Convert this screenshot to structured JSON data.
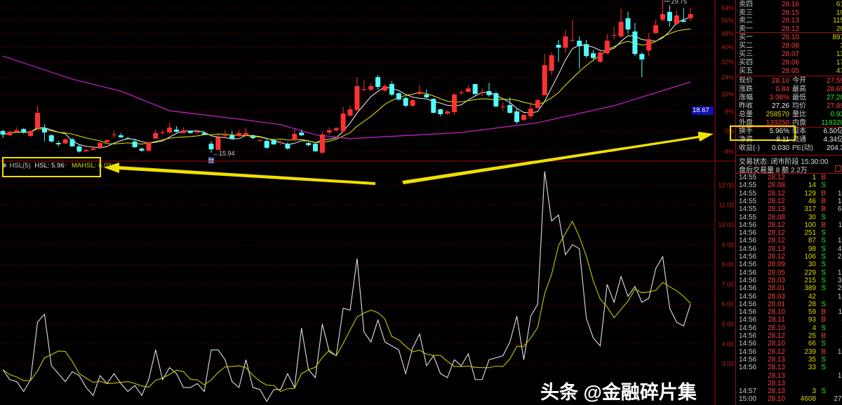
{
  "colors": {
    "up": "#ff3232",
    "down": "#54fcfc",
    "ma_short": "#e0e0e0",
    "ma_mid": "#d8d800",
    "ma_long": "#c020c0",
    "hsl": "#e0e0e0",
    "mahsl": "#c8c800",
    "grid": "#5a0000",
    "axis_text": "#c02020",
    "annotation": "#f0e000"
  },
  "chart_data": [
    {
      "type": "candlestick",
      "yscale": "log-percent",
      "y_ticks": [
        "64%",
        "56%",
        "48%",
        "40%",
        "32%",
        "24%",
        "16%",
        "8%",
        "0%",
        "-8%"
      ],
      "y_tick_values": [
        64,
        56,
        48,
        40,
        32,
        24,
        16,
        8,
        0,
        -8
      ],
      "high_label": "29.75",
      "low_label": "15.94",
      "low_marker": "财",
      "cursor_price": "18.67",
      "ohlc": [
        [
          0,
          0.6,
          -2.8,
          -1.4
        ],
        [
          -1.7,
          0.3,
          -2.0,
          -0.3
        ],
        [
          -0.3,
          1.5,
          -0.8,
          0.3
        ],
        [
          0.8,
          1.2,
          -1.0,
          -0.6
        ],
        [
          -2.0,
          0.5,
          -2.3,
          0
        ],
        [
          1.1,
          10.5,
          1.1,
          7.6
        ],
        [
          1.1,
          2.9,
          -4.0,
          -0.6
        ],
        [
          -1.7,
          -1.2,
          -4.5,
          -4.1
        ],
        [
          -4.7,
          -3.8,
          -6.0,
          -5.2
        ],
        [
          -4.9,
          -2.8,
          -5.0,
          -3.3
        ],
        [
          -3.3,
          -2.6,
          -6.0,
          -6.0
        ],
        [
          -6.0,
          -5.5,
          -8.3,
          -7.9
        ],
        [
          -7.8,
          -7.0,
          -8.0,
          -7.3
        ],
        [
          -7.3,
          -6.5,
          -7.5,
          -6.8
        ],
        [
          -6.5,
          -4.2,
          -6.8,
          -4.7
        ],
        [
          -4.4,
          -3.3,
          -4.6,
          -3.6
        ],
        [
          -1.5,
          0.0,
          -2.8,
          -1.3
        ],
        [
          -1.7,
          -0.8,
          -2.7,
          -2.5
        ],
        [
          -2.8,
          -2.3,
          -3.3,
          -3.0
        ],
        [
          -4.1,
          -3.0,
          -6.5,
          -6.3
        ],
        [
          -6.8,
          -6.5,
          -8.0,
          -7.6
        ],
        [
          -7.6,
          -4.0,
          -7.8,
          -4.4
        ],
        [
          -3.0,
          0.5,
          -3.0,
          -0.8
        ],
        [
          -0.6,
          0.5,
          -1.4,
          -0.6
        ],
        [
          -0.6,
          3.3,
          -0.8,
          1.4
        ],
        [
          0.6,
          2.0,
          -0.6,
          -0.3
        ],
        [
          -0.8,
          1.5,
          -1.0,
          0.3
        ],
        [
          0,
          0.3,
          -1.0,
          -0.8
        ],
        [
          -0.6,
          0.6,
          -1.0,
          -0.3
        ],
        [
          -0.8,
          0,
          -1.7,
          -1.4
        ],
        [
          -5.0,
          -4.0,
          -8.4,
          -7.1
        ],
        [
          -7.3,
          -1.4,
          -7.3,
          -2.5
        ],
        [
          -1.7,
          0.3,
          -3.0,
          -1.7
        ],
        [
          -1.7,
          0,
          -3.3,
          -3.0
        ],
        [
          -2.0,
          0.3,
          -2.3,
          -0.8
        ],
        [
          -1.7,
          1.5,
          -2.0,
          -0.8
        ],
        [
          -2.2,
          -1.4,
          -3.3,
          -2.8
        ],
        [
          -3.9,
          -3.3,
          -4.2,
          -3.6
        ],
        [
          -3.9,
          -2.8,
          -7.0,
          -6.5
        ],
        [
          -3.6,
          -3.0,
          -5.5,
          -5.2
        ],
        [
          -4.4,
          -3.6,
          -5.5,
          -4.4
        ],
        [
          -5.0,
          -4.4,
          -7.3,
          -6.8
        ],
        [
          -3.6,
          1.0,
          -4.0,
          -1.1
        ],
        [
          -0.6,
          0.6,
          -2.0,
          -1.7
        ],
        [
          -4.7,
          -4.2,
          -6.0,
          -5.5
        ],
        [
          -5.0,
          -4.5,
          -8.0,
          -7.8
        ],
        [
          -8.4,
          -0.3,
          -8.4,
          -1.4
        ],
        [
          -0.6,
          1.5,
          -1.4,
          0.3
        ],
        [
          0.3,
          1.7,
          -0.3,
          1.1
        ],
        [
          0,
          10.1,
          -0.3,
          7.3
        ],
        [
          6.4,
          11.0,
          5.8,
          9.1
        ],
        [
          8.8,
          24.2,
          8.5,
          19.8
        ],
        [
          18.4,
          22.5,
          17.1,
          18.4
        ],
        [
          18.1,
          21.3,
          17.5,
          19.8
        ],
        [
          24.2,
          25.3,
          18.1,
          19.4
        ],
        [
          17.7,
          20.8,
          17.1,
          19.8
        ],
        [
          20.8,
          22.2,
          15.0,
          15.8
        ],
        [
          16.4,
          16.8,
          13.0,
          13.5
        ],
        [
          14.2,
          14.8,
          10.1,
          10.7
        ],
        [
          10.7,
          13.9,
          10.1,
          13.2
        ],
        [
          16.1,
          20.4,
          15.5,
          17.1
        ],
        [
          15.8,
          18.1,
          14.2,
          14.5
        ],
        [
          13.8,
          14.2,
          7.3,
          7.6
        ],
        [
          9.1,
          9.4,
          6.1,
          7.0
        ],
        [
          7.3,
          8.8,
          6.7,
          8.2
        ],
        [
          7.9,
          16.4,
          6.7,
          15.8
        ],
        [
          16.8,
          18.1,
          15.5,
          16.8
        ],
        [
          17.1,
          20.1,
          16.8,
          18.7
        ],
        [
          20.8,
          20.8,
          15.5,
          16.1
        ],
        [
          16.8,
          18.7,
          15.1,
          16.8
        ],
        [
          17.4,
          21.3,
          14.8,
          15.5
        ],
        [
          16.4,
          17.1,
          10.1,
          10.4
        ],
        [
          10.1,
          12.2,
          8.5,
          10.4
        ],
        [
          11.0,
          14.5,
          7.3,
          7.6
        ],
        [
          8.2,
          9.4,
          2.9,
          3.7
        ],
        [
          4.6,
          7.3,
          4.0,
          6.7
        ],
        [
          6.1,
          12.2,
          4.9,
          9.4
        ],
        [
          9.7,
          13.9,
          9.4,
          13.2
        ],
        [
          15.5,
          36.3,
          15.5,
          30.3
        ],
        [
          27.4,
          37.1,
          25.3,
          35.6
        ],
        [
          41.4,
          44.2,
          32.1,
          39.8
        ],
        [
          39.8,
          50.0,
          37.1,
          46.3
        ],
        [
          44.2,
          56.0,
          43.0,
          44.2
        ],
        [
          43.8,
          46.3,
          28.5,
          40.6
        ],
        [
          41.8,
          44.2,
          34.1,
          35.2
        ],
        [
          36.7,
          38.6,
          33.3,
          34.1
        ],
        [
          32.1,
          38.2,
          31.4,
          37.1
        ],
        [
          36.7,
          47.5,
          36.0,
          43.8
        ],
        [
          46.7,
          52.1,
          44.6,
          47.1
        ],
        [
          46.3,
          63.5,
          45.5,
          55.1
        ],
        [
          57.4,
          61.4,
          47.9,
          50.4
        ],
        [
          49.2,
          54.5,
          35.2,
          36.3
        ],
        [
          36.3,
          37.1,
          24.2,
          33.3
        ],
        [
          38.2,
          48.3,
          35.2,
          44.6
        ],
        [
          48.3,
          56.5,
          47.5,
          53.0
        ],
        [
          56.5,
          69.9,
          55.6,
          60.0
        ],
        [
          61.4,
          65.7,
          52.1,
          55.6
        ],
        [
          53.9,
          62.4,
          52.6,
          59.1
        ],
        [
          56.0,
          64.0,
          54.7,
          55.1
        ],
        [
          57.4,
          64.0,
          55.6,
          60.0
        ]
      ],
      "ma_long_points": [
        [
          0,
          35.2
        ],
        [
          10,
          23.2
        ],
        [
          17,
          17.4
        ],
        [
          24,
          8.5
        ],
        [
          34,
          4.9
        ],
        [
          40,
          2.6
        ],
        [
          45,
          -1.5
        ],
        [
          50,
          -3.0
        ],
        [
          66,
          -0.6
        ],
        [
          77,
          3.4
        ],
        [
          88,
          10.7
        ],
        [
          99,
          21.8
        ]
      ]
    },
    {
      "type": "line",
      "indicator": "HSL(5)",
      "y_ticks": [
        "12.00",
        "11.00",
        "10.00",
        "9.00",
        "8.00",
        "7.00",
        "6.00",
        "5.00",
        "4.00",
        "3.00"
      ],
      "y_tick_values": [
        12,
        11,
        10,
        9,
        8,
        7,
        6,
        5,
        4,
        3
      ],
      "series": [
        {
          "name": "HSL",
          "values": [
            2.7,
            2.2,
            2.1,
            1.6,
            2.2,
            5.1,
            5.5,
            2.9,
            2.5,
            2.1,
            2.6,
            2.4,
            1.8,
            1.4,
            2.4,
            2.0,
            2.5,
            2.0,
            1.6,
            1.9,
            1.4,
            2.2,
            3.7,
            2.2,
            2.8,
            2.5,
            1.8,
            1.8,
            2.0,
            1.6,
            3.7,
            3.7,
            3.2,
            2.1,
            1.8,
            3.2,
            1.8,
            1.7,
            1.1,
            1.7,
            1.7,
            2.5,
            1.8,
            4.8,
            2.7,
            2.3,
            5.0,
            3.6,
            3.4,
            5.8,
            5.7,
            8.3,
            4.6,
            4.1,
            5.2,
            4.1,
            3.9,
            3.7,
            2.5,
            3.8,
            4.5,
            2.9,
            3.4,
            2.5,
            2.3,
            3.2,
            2.9,
            3.5,
            2.2,
            2.2,
            3.2,
            3.3,
            3.4,
            4.1,
            5.4,
            3.2,
            5.4,
            6.0,
            12.7,
            10.2,
            10.5,
            8.5,
            9.0,
            8.8,
            5.3,
            4.3,
            3.9,
            7.0,
            6.1,
            7.4,
            6.4,
            6.9,
            6.1,
            6.3,
            7.8,
            8.4,
            5.8,
            5.1,
            4.9,
            6.0
          ]
        },
        {
          "name": "MAHSL",
          "period": 5
        }
      ]
    }
  ],
  "indicator_label": {
    "name": "HSL(5)",
    "hsl": "HSL: 5.96",
    "hsl_arrow": "↑",
    "mahsl": "MAHSL: 6.03",
    "mahsl_arrow": "↓"
  },
  "order_book": {
    "asks": [
      {
        "label": "卖四",
        "price": "28.16",
        "vol": "61"
      },
      {
        "label": "卖三",
        "price": "28.15",
        "vol": "10"
      },
      {
        "label": "卖二",
        "price": "28.13",
        "vol": "115"
      },
      {
        "label": "卖一",
        "price": "28.12",
        "vol": "20"
      }
    ],
    "bids": [
      {
        "label": "买一",
        "price": "28.10",
        "vol": "897"
      },
      {
        "label": "买二",
        "price": "28.08",
        "vol": "3"
      },
      {
        "label": "买三",
        "price": "28.07",
        "vol": "13"
      },
      {
        "label": "买四",
        "price": "28.06",
        "vol": "17"
      },
      {
        "label": "买五",
        "price": "28.05",
        "vol": "47"
      }
    ]
  },
  "quote_stats": [
    {
      "l1": "现价",
      "v1": "28.10",
      "c1": "red",
      "l2": "今开",
      "v2": "27.59",
      "c2": "red"
    },
    {
      "l1": "涨跌",
      "v1": "0.84",
      "c1": "red",
      "l2": "最高",
      "v2": "28.69",
      "c2": "red"
    },
    {
      "l1": "涨幅",
      "v1": "3.08%",
      "c1": "red",
      "l2": "最低",
      "v2": "27.20",
      "c2": "grn"
    },
    {
      "l1": "昨收",
      "v1": "27.26",
      "c1": "wht",
      "l2": "均价",
      "v2": "27.89",
      "c2": "red"
    },
    {
      "l1": "总量",
      "v1": "258570",
      "c1": "yel",
      "l2": "量比",
      "v2": "0.93",
      "c2": "grn"
    },
    {
      "l1": "外盘",
      "v1": "139250",
      "c1": "red",
      "l2": "内盘",
      "v2": "119320",
      "c2": "grn"
    },
    {
      "l1": "换手",
      "v1": "5.96%",
      "c1": "wht",
      "l2": "股本",
      "v2": "6.50亿",
      "c2": "wht"
    },
    {
      "l1": "净资",
      "v1": "8.11",
      "c1": "wht",
      "l2": "流通",
      "v2": "4.34亿",
      "c2": "wht"
    },
    {
      "l1": "收益(-)",
      "v1": "0.030",
      "c1": "wht",
      "l2": "PE(动)",
      "v2": "204.3",
      "c2": "wht"
    }
  ],
  "trade_status": "交易状态: 闭市阶段 15:30:00",
  "after_hours": "盘后交易量 8 额 2.2万",
  "trades": [
    {
      "t": "14:55",
      "p": "28.12",
      "v": "1",
      "bs": "B",
      "n": "1"
    },
    {
      "t": "14:55",
      "p": "28.08",
      "v": "14",
      "bs": "S",
      "n": "4"
    },
    {
      "t": "14:55",
      "p": "28.12",
      "v": "129",
      "bs": "B",
      "n": "10"
    },
    {
      "t": "14:55",
      "p": "28.12",
      "v": "46",
      "bs": "B",
      "n": "10"
    },
    {
      "t": "14:55",
      "p": "28.13",
      "v": "317",
      "bs": "B",
      "n": "67"
    },
    {
      "t": "14:55",
      "p": "28.08",
      "v": "30",
      "bs": "S",
      "n": "4"
    },
    {
      "t": "14:56",
      "p": "28.12",
      "v": "100",
      "bs": "B",
      "n": "11"
    },
    {
      "t": "14:56",
      "p": "28.12",
      "v": "251",
      "bs": "S",
      "n": "6"
    },
    {
      "t": "14:56",
      "p": "28.12",
      "v": "87",
      "bs": "S",
      "n": "14"
    },
    {
      "t": "14:56",
      "p": "28.13",
      "v": "98",
      "bs": "S",
      "n": "47"
    },
    {
      "t": "14:56",
      "p": "28.12",
      "v": "106",
      "bs": "S",
      "n": "23"
    },
    {
      "t": "14:56",
      "p": "28.09",
      "v": "30",
      "bs": "S",
      "n": "5"
    },
    {
      "t": "14:56",
      "p": "28.05",
      "v": "229",
      "bs": "S",
      "n": "18"
    },
    {
      "t": "14:56",
      "p": "28.03",
      "v": "215",
      "bs": "S",
      "n": "30"
    },
    {
      "t": "14:56",
      "p": "28.01",
      "v": "389",
      "bs": "S",
      "n": "20"
    },
    {
      "t": "14:56",
      "p": "28.03",
      "v": "42",
      "bs": "",
      "n": "12"
    },
    {
      "t": "14:56",
      "p": "28.01",
      "v": "28",
      "bs": "S",
      "n": "6"
    },
    {
      "t": "14:56",
      "p": "28.10",
      "v": "59",
      "bs": "B",
      "n": "11"
    },
    {
      "t": "14:56",
      "p": "28.11",
      "v": "93",
      "bs": "B",
      "n": "4"
    },
    {
      "t": "14:56",
      "p": "28.10",
      "v": "4",
      "bs": "S",
      "n": "1"
    },
    {
      "t": "14:56",
      "p": "28.12",
      "v": "25",
      "bs": "B",
      "n": "4"
    },
    {
      "t": "14:56",
      "p": "28.10",
      "v": "66",
      "bs": "S",
      "n": "6"
    },
    {
      "t": "14:56",
      "p": "28.12",
      "v": "239",
      "bs": "B",
      "n": "13"
    },
    {
      "t": "14:56",
      "p": "28.13",
      "v": "35",
      "bs": "S",
      "n": "6"
    },
    {
      "t": "14:56",
      "p": "28.13",
      "v": "33",
      "bs": "S",
      "n": "2"
    },
    {
      "t": "",
      "p": "28.13",
      "v": "",
      "bs": "",
      "n": "12"
    },
    {
      "t": "",
      "p": "28.13",
      "v": "",
      "bs": "",
      "n": "9"
    },
    {
      "t": "14:57",
      "p": "28.13",
      "v": "3",
      "bs": "S",
      "n": "3"
    },
    {
      "t": "15:00",
      "p": "28.10",
      "v": "4608",
      "bs": "",
      "n": "276"
    }
  ],
  "watermark": "头条 @金融碎片集"
}
